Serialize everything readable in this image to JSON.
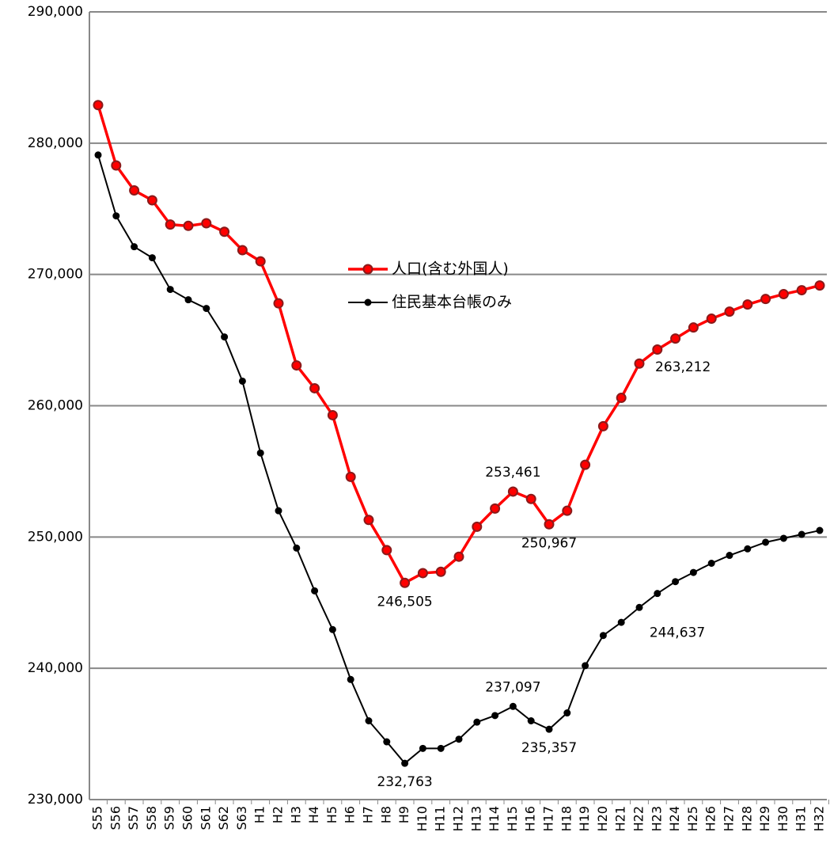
{
  "chart_data": {
    "type": "line",
    "categories": [
      "S55",
      "S56",
      "S57",
      "S58",
      "S59",
      "S60",
      "S61",
      "S62",
      "S63",
      "H1",
      "H2",
      "H3",
      "H4",
      "H5",
      "H6",
      "H7",
      "H8",
      "H9",
      "H10",
      "H11",
      "H12",
      "H13",
      "H14",
      "H15",
      "H16",
      "H17",
      "H18",
      "H19",
      "H20",
      "H21",
      "H22",
      "H23",
      "H24",
      "H25",
      "H26",
      "H27",
      "H28",
      "H29",
      "H30",
      "H31",
      "H32"
    ],
    "series": [
      {
        "name": "人口(含む外国人)",
        "color": "#ff0000",
        "values": [
          282900,
          278300,
          276400,
          275650,
          273800,
          273700,
          273900,
          273250,
          271850,
          271000,
          267800,
          263070,
          261330,
          259280,
          254580,
          251300,
          249000,
          246505,
          247250,
          247350,
          248500,
          250780,
          252170,
          253461,
          252900,
          250967,
          252000,
          255500,
          258440,
          260600,
          263212,
          264280,
          265120,
          265960,
          266630,
          267170,
          267710,
          268130,
          268500,
          268800,
          269160
        ],
        "value_labels": [
          null,
          null,
          null,
          null,
          null,
          null,
          null,
          null,
          null,
          null,
          null,
          null,
          null,
          null,
          null,
          null,
          null,
          "246,505",
          null,
          null,
          null,
          null,
          null,
          "253,461",
          null,
          "250,967",
          null,
          null,
          null,
          null,
          "263,212",
          null,
          null,
          null,
          null,
          null,
          null,
          null,
          null,
          null,
          null
        ]
      },
      {
        "name": "住民基本台帳のみ",
        "color": "#000000",
        "values": [
          279100,
          274460,
          272110,
          271270,
          268860,
          268070,
          267410,
          265240,
          261870,
          256400,
          252000,
          249160,
          245900,
          242950,
          239150,
          236000,
          234400,
          232763,
          233900,
          233900,
          234600,
          235900,
          236400,
          237097,
          236000,
          235357,
          236600,
          240200,
          242500,
          243500,
          244637,
          245700,
          246600,
          247300,
          248000,
          248600,
          249100,
          249600,
          249900,
          250200,
          250500
        ],
        "value_labels": [
          null,
          null,
          null,
          null,
          null,
          null,
          null,
          null,
          null,
          null,
          null,
          null,
          null,
          null,
          null,
          null,
          null,
          "232,763",
          null,
          null,
          null,
          null,
          null,
          "237,097",
          null,
          "235,357",
          null,
          null,
          null,
          null,
          "244,637",
          null,
          null,
          null,
          null,
          null,
          null,
          null,
          null,
          null,
          null
        ]
      }
    ],
    "ylim": [
      230000,
      290000
    ],
    "yticks": [
      {
        "value": 230000,
        "label": "230,000"
      },
      {
        "value": 240000,
        "label": "240,000"
      },
      {
        "value": 250000,
        "label": "250,000"
      },
      {
        "value": 260000,
        "label": "260,000"
      },
      {
        "value": 270000,
        "label": "270,000"
      },
      {
        "value": 280000,
        "label": "280,000"
      },
      {
        "value": 290000,
        "label": "290,000"
      }
    ],
    "grid": true,
    "legend": "center"
  }
}
